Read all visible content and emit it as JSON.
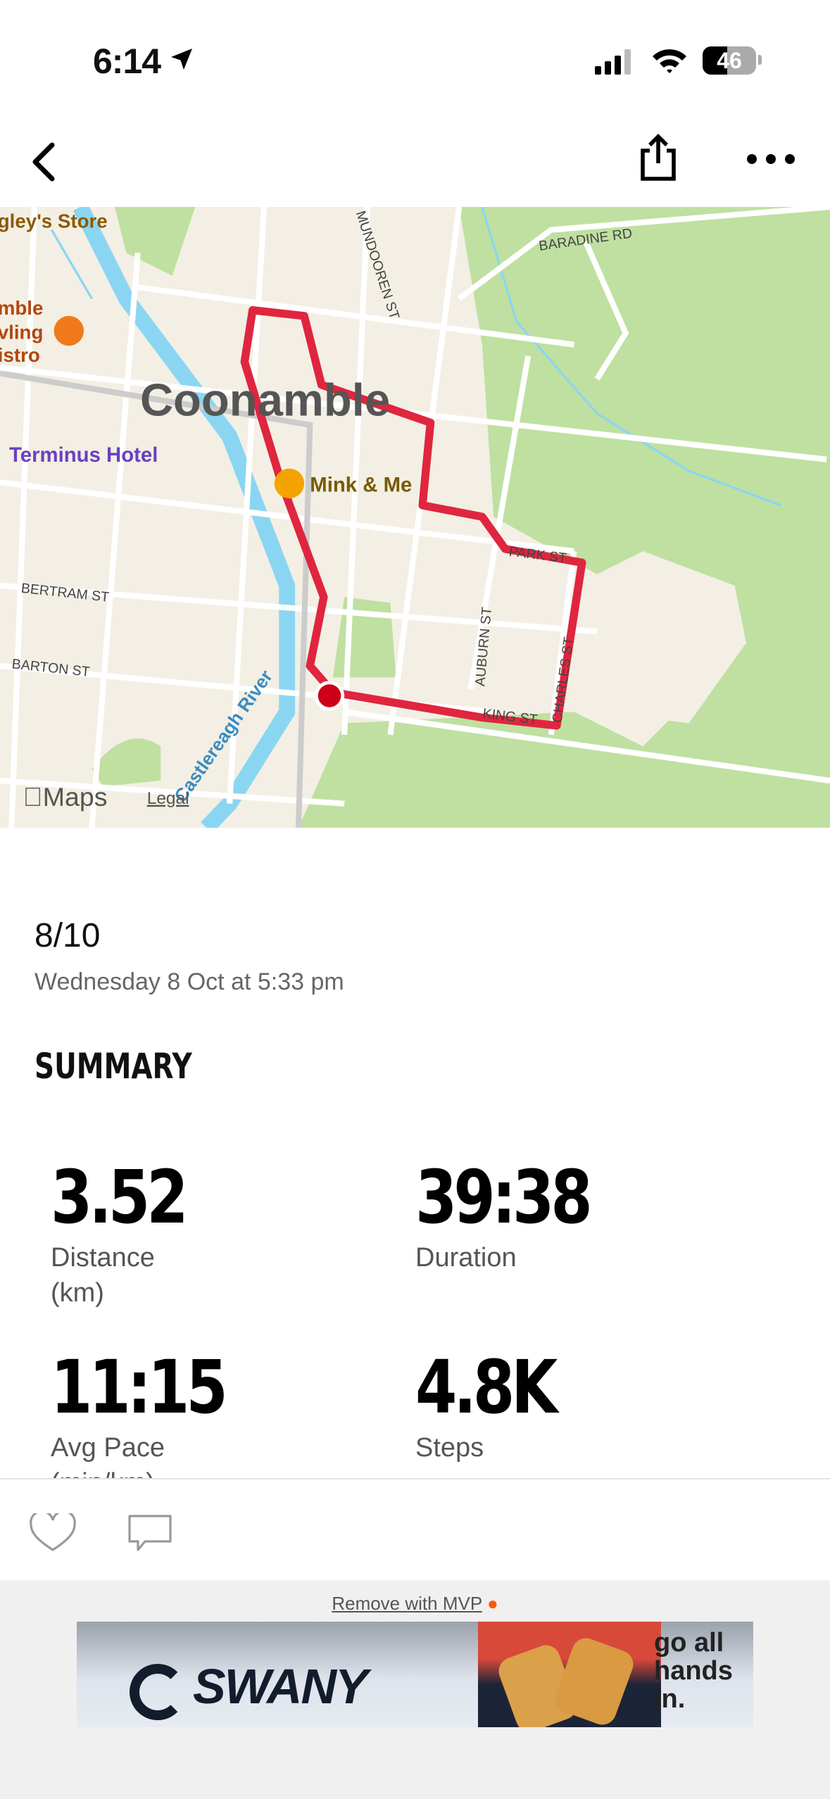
{
  "status_bar": {
    "time": "6:14",
    "battery": "46"
  },
  "nav": {
    "back": "back",
    "share": "share",
    "more": "more"
  },
  "map": {
    "labels": {
      "town": "Coonamble",
      "store": "gley's Store",
      "bistro": [
        "mble",
        "vling",
        "istro"
      ],
      "hotel": "Terminus Hotel",
      "shop": "Mink & Me",
      "baradine": "BARADINE RD",
      "mundooren": "MUNDOOREN ST",
      "park": "PARK ST",
      "auburn": "AUBURN ST",
      "charles": "CHARLES ST",
      "king": "KING ST",
      "bertram": "BERTRAM ST",
      "barton": "BARTON ST",
      "river": "Castlereagh River",
      "attribution": "Maps",
      "legal": "Legal"
    },
    "colors": {
      "route": "#e0253f",
      "park": "#bfe0a0",
      "water": "#8ad6f2",
      "land": "#f3efe4"
    }
  },
  "activity": {
    "title": "8/10",
    "datetime": "Wednesday 8 Oct at 5:33 pm"
  },
  "summary": {
    "heading": "SUMMARY",
    "stats": [
      {
        "value": "3.52",
        "label": "Distance",
        "unit": "(km)"
      },
      {
        "value": "39:38",
        "label": "Duration"
      },
      {
        "value": "11:15",
        "label": "Avg Pace",
        "unit": "(min/km)"
      },
      {
        "value": "4.8K",
        "label": "Steps"
      }
    ]
  },
  "actions": {
    "like": "heart-icon",
    "comment": "comment-icon"
  },
  "ad": {
    "remove": "Remove with MVP",
    "brand": "SWANY",
    "tagline": "go all hands in."
  }
}
